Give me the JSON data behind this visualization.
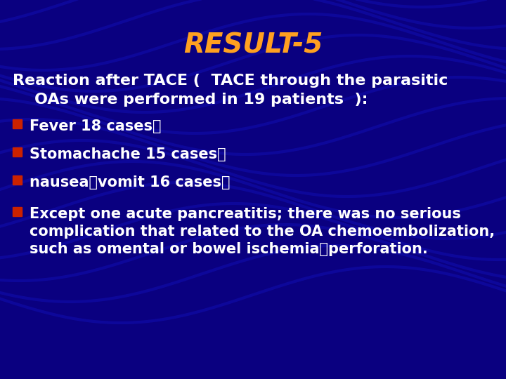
{
  "title": "RESULT-5",
  "title_color": "#FFA020",
  "title_fontsize": 28,
  "title_style": "italic",
  "title_weight": "bold",
  "bg_color": "#0A0080",
  "text_color": "#FFFFFF",
  "bullet_color": "#CC2200",
  "heading_text_line1": "Reaction after TACE (  TACE through the parasitic",
  "heading_text_line2": "    OAs were performed in 19 patients  ):",
  "heading_fontsize": 16,
  "heading_weight": "bold",
  "bullet1": "Fever 18 cases；",
  "bullet2": "Stomachache 15 cases；",
  "bullet3": "nausea、vomit 16 cases；",
  "bullet4a": "Except one acute pancreatitis; there was no serious",
  "bullet4b": "complication that related to the OA chemoembolization,",
  "bullet4c": "such as omental or bowel ischemia、perforation.",
  "bullet_fontsize": 15,
  "bullet_weight": "bold"
}
